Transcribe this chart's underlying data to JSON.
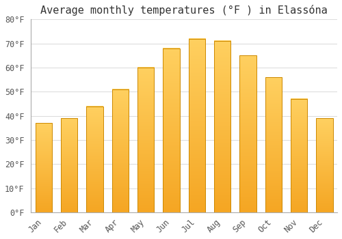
{
  "title": "Average monthly temperatures (°F ) in Elassóna",
  "months": [
    "Jan",
    "Feb",
    "Mar",
    "Apr",
    "May",
    "Jun",
    "Jul",
    "Aug",
    "Sep",
    "Oct",
    "Nov",
    "Dec"
  ],
  "values": [
    37,
    39,
    44,
    51,
    60,
    68,
    72,
    71,
    65,
    56,
    47,
    39
  ],
  "ylim": [
    0,
    80
  ],
  "yticks": [
    0,
    10,
    20,
    30,
    40,
    50,
    60,
    70,
    80
  ],
  "ytick_labels": [
    "0°F",
    "10°F",
    "20°F",
    "30°F",
    "40°F",
    "50°F",
    "60°F",
    "70°F",
    "80°F"
  ],
  "background_color": "#ffffff",
  "grid_color": "#dddddd",
  "title_fontsize": 11,
  "tick_fontsize": 8.5,
  "bar_color_bottom": "#F5A623",
  "bar_color_top": "#FFD060",
  "bar_edge_color": "#CC8800",
  "bar_width": 0.65
}
